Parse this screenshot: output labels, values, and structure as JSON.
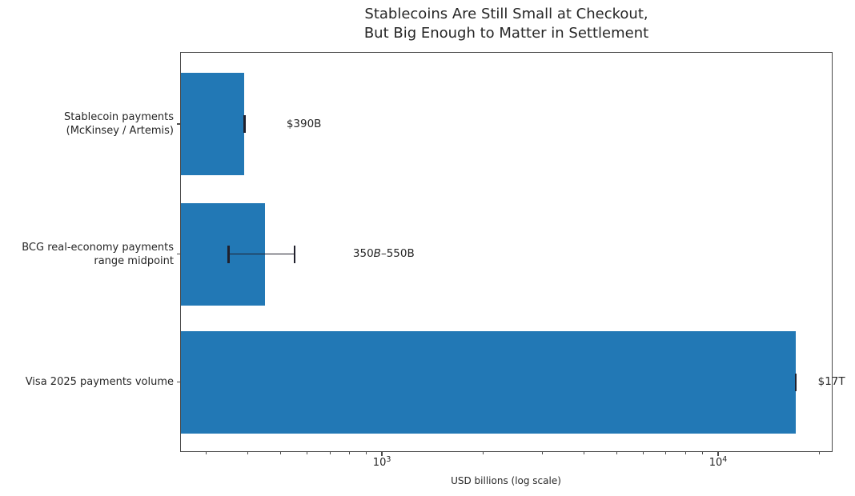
{
  "title": {
    "line1": "Stablecoins Are Still Small at Checkout,",
    "line2": "But Big Enough to Matter in Settlement"
  },
  "chart_data": {
    "type": "bar",
    "orientation": "horizontal",
    "xscale": "log",
    "title": "Stablecoins Are Still Small at Checkout, But Big Enough to Matter in Settlement",
    "xlabel": "USD billions (log scale)",
    "xlim": [
      251,
      21900
    ],
    "grid": false,
    "legend": false,
    "bar_color": "#2278b5",
    "error_color": "#20202c",
    "xticks_major": [
      {
        "value": 1000,
        "label": "10^3"
      },
      {
        "value": 10000,
        "label": "10^4"
      }
    ],
    "xticks_minor": [
      300,
      400,
      500,
      600,
      700,
      800,
      900,
      2000,
      3000,
      4000,
      5000,
      6000,
      7000,
      8000,
      9000,
      20000
    ],
    "bars": [
      {
        "name": "stablecoin-payments",
        "label_lines": [
          "Stablecoin payments",
          "(McKinsey / Artemis)"
        ],
        "value": 390,
        "err": [
          390,
          390
        ],
        "annotation": [
          {
            "t": "$390B"
          }
        ],
        "annotation_x": 520
      },
      {
        "name": "bcg-range-midpoint",
        "label_lines": [
          "BCG real-economy payments",
          "range midpoint"
        ],
        "value": 450,
        "err": [
          350,
          550
        ],
        "annotation": [
          {
            "t": "350"
          },
          {
            "t": "B",
            "italic": true
          },
          {
            "t": "–550B"
          }
        ],
        "annotation_x": 820
      },
      {
        "name": "visa-2025-volume",
        "label_lines": [
          "Visa 2025 payments volume"
        ],
        "value": 17000,
        "err": [
          17000,
          17000
        ],
        "annotation": [
          {
            "t": "$17T"
          }
        ],
        "annotation_x": 19800
      }
    ]
  }
}
